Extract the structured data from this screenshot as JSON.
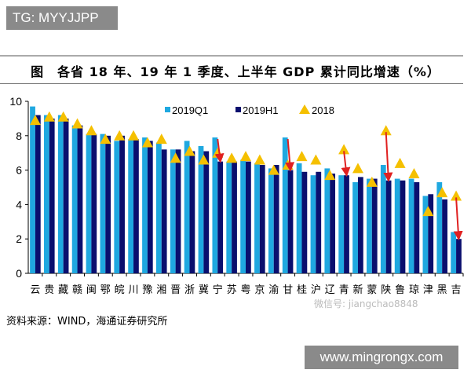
{
  "watermark_top": "TG: MYYJJPP",
  "watermark_bottom": "www.mingrongx.com",
  "watermark_wechat": "微信号: jiangchao8848",
  "source": "资料来源：WIND，海通证券研究所",
  "chart_data": {
    "type": "bar",
    "title": "图　各省 18 年、19 年 1 季度、上半年 GDP 累计同比增速（%）",
    "ylim": [
      0,
      10
    ],
    "yticks": [
      0,
      2,
      4,
      6,
      8,
      10
    ],
    "legend_placement": "top-right",
    "categories": [
      "云",
      "贵",
      "藏",
      "赣",
      "闽",
      "鄂",
      "皖",
      "川",
      "豫",
      "湘",
      "晋",
      "浙",
      "冀",
      "宁",
      "苏",
      "粤",
      "京",
      "渝",
      "甘",
      "桂",
      "沪",
      "辽",
      "青",
      "新",
      "蒙",
      "陕",
      "鲁",
      "琼",
      "津",
      "黑",
      "吉"
    ],
    "series": [
      {
        "name": "2019Q1",
        "kind": "bar",
        "color": "#1fa8e0",
        "values": [
          9.7,
          9.2,
          9.2,
          8.6,
          8.1,
          8.1,
          7.7,
          7.8,
          7.9,
          7.6,
          7.2,
          7.7,
          7.4,
          7.9,
          6.5,
          6.6,
          6.4,
          6.1,
          7.9,
          6.4,
          5.7,
          6.1,
          5.7,
          5.3,
          5.5,
          6.3,
          5.5,
          5.5,
          4.5,
          5.3,
          2.4
        ]
      },
      {
        "name": "2019H1",
        "kind": "bar",
        "color": "#0a0f6e",
        "values": [
          9.2,
          9.0,
          9.0,
          8.6,
          8.1,
          8.0,
          8.0,
          7.8,
          7.7,
          7.2,
          7.2,
          7.1,
          7.1,
          6.5,
          6.5,
          6.5,
          6.3,
          6.3,
          6.0,
          5.9,
          5.9,
          5.8,
          5.7,
          5.6,
          5.5,
          5.4,
          5.4,
          5.3,
          4.6,
          4.3,
          2.0
        ]
      },
      {
        "name": "2018",
        "kind": "marker-triangle",
        "color": "#f5c000",
        "values": [
          8.9,
          9.1,
          9.1,
          8.7,
          8.3,
          7.8,
          8.0,
          8.0,
          7.6,
          7.8,
          6.7,
          7.1,
          6.6,
          7.0,
          6.7,
          6.8,
          6.6,
          6.0,
          6.3,
          6.8,
          6.6,
          5.7,
          7.2,
          6.1,
          5.3,
          8.3,
          6.4,
          5.8,
          3.6,
          4.7,
          4.5
        ]
      }
    ],
    "arrows": {
      "color": "#e02020",
      "categories": [
        "宁",
        "甘",
        "青",
        "陕",
        "吉"
      ]
    }
  }
}
